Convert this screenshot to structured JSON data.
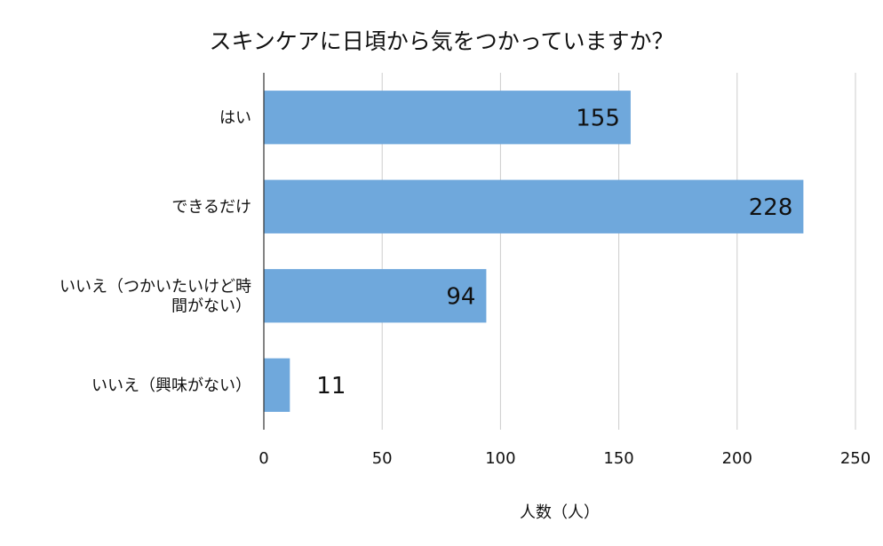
{
  "chart_data": {
    "type": "bar",
    "orientation": "horizontal",
    "title": "スキンケアに日頃から気をつかっていますか？",
    "xlabel": "人数（人）",
    "ylabel": "",
    "categories": [
      [
        "はい"
      ],
      [
        "できるだけ"
      ],
      [
        "いいえ（つかいたいけど時",
        "間がない）"
      ],
      [
        "いいえ（興味がない）"
      ]
    ],
    "values": [
      155,
      228,
      94,
      11
    ],
    "value_labels": [
      "155",
      "228",
      "94",
      "11"
    ],
    "xlim": [
      0,
      250
    ],
    "xticks": [
      0,
      50,
      100,
      150,
      200,
      250
    ],
    "xtick_labels": [
      "0",
      "50",
      "100",
      "150",
      "200",
      "250"
    ],
    "grid": "vertical",
    "legend": "none",
    "bar_color": "#6fa8dc",
    "grid_color": "#cccccc",
    "axis_color": "#333333"
  }
}
